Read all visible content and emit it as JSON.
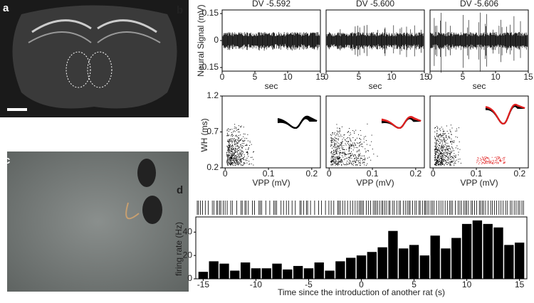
{
  "panel_labels": [
    "a",
    "b",
    "c",
    "d"
  ],
  "chart_data": [
    {
      "type": "trace",
      "title": "DV -5.592",
      "y_label": "Neural Signal (mV)",
      "x_label": "sec",
      "xlim": [
        0,
        15
      ],
      "xticks": [
        0,
        5,
        10,
        15
      ],
      "ylim": [
        -0.17,
        0.17
      ],
      "yticks": [
        0.15,
        0,
        -0.15
      ]
    },
    {
      "type": "trace",
      "title": "DV -5.600",
      "x_label": "sec",
      "xlim": [
        0,
        15
      ],
      "xticks": [
        0,
        5,
        10,
        15
      ],
      "ylim": [
        -0.17,
        0.17
      ]
    },
    {
      "type": "trace",
      "title": "DV -5.606",
      "x_label": "sec",
      "xlim": [
        0,
        15
      ],
      "xticks": [
        0,
        5,
        10,
        15
      ],
      "ylim": [
        -0.17,
        0.17
      ]
    },
    {
      "type": "scatter",
      "y_label": "WH (ms)",
      "x_label": "VPP (mV)",
      "xlim": [
        -0.007,
        0.22
      ],
      "xticks": [
        0,
        0.1,
        0.2
      ],
      "ylim": [
        0.2,
        1.2
      ],
      "yticks": [
        0.2,
        0.7,
        1.2
      ]
    },
    {
      "type": "scatter",
      "x_label": "VPP (mV)",
      "xlim": [
        -0.007,
        0.22
      ],
      "xticks": [
        0,
        0.1,
        0.2
      ],
      "ylim": [
        0.2,
        1.2
      ]
    },
    {
      "type": "scatter",
      "x_label": "VPP (mV)",
      "xlim": [
        -0.007,
        0.22
      ],
      "xticks": [
        0,
        0.1,
        0.2
      ],
      "ylim": [
        0.2,
        1.2
      ]
    },
    {
      "type": "bar",
      "y_label": "firing rate (Hz)",
      "x_label": "Time since the introduction of another rat (s)",
      "color": "#000000",
      "x": [
        -15,
        -14,
        -13,
        -12,
        -11,
        -10,
        -9,
        -8,
        -7,
        -6,
        -5,
        -4,
        -3,
        -2,
        -1,
        0,
        1,
        2,
        3,
        4,
        5,
        6,
        7,
        8,
        9,
        10,
        11,
        12,
        13,
        14,
        15
      ],
      "values": [
        6,
        15,
        13,
        7,
        14,
        9,
        9,
        13,
        8,
        11,
        9,
        14,
        7,
        15,
        18,
        20,
        23,
        27,
        41,
        26,
        29,
        20,
        37,
        26,
        35,
        47,
        50,
        47,
        44,
        29,
        31
      ],
      "xlim": [
        -15.7,
        15.7
      ],
      "xticks": [
        -15,
        -10,
        -5,
        0,
        5,
        10,
        15
      ],
      "ylim": [
        0,
        53
      ],
      "yticks": [
        0,
        20,
        40
      ]
    }
  ]
}
